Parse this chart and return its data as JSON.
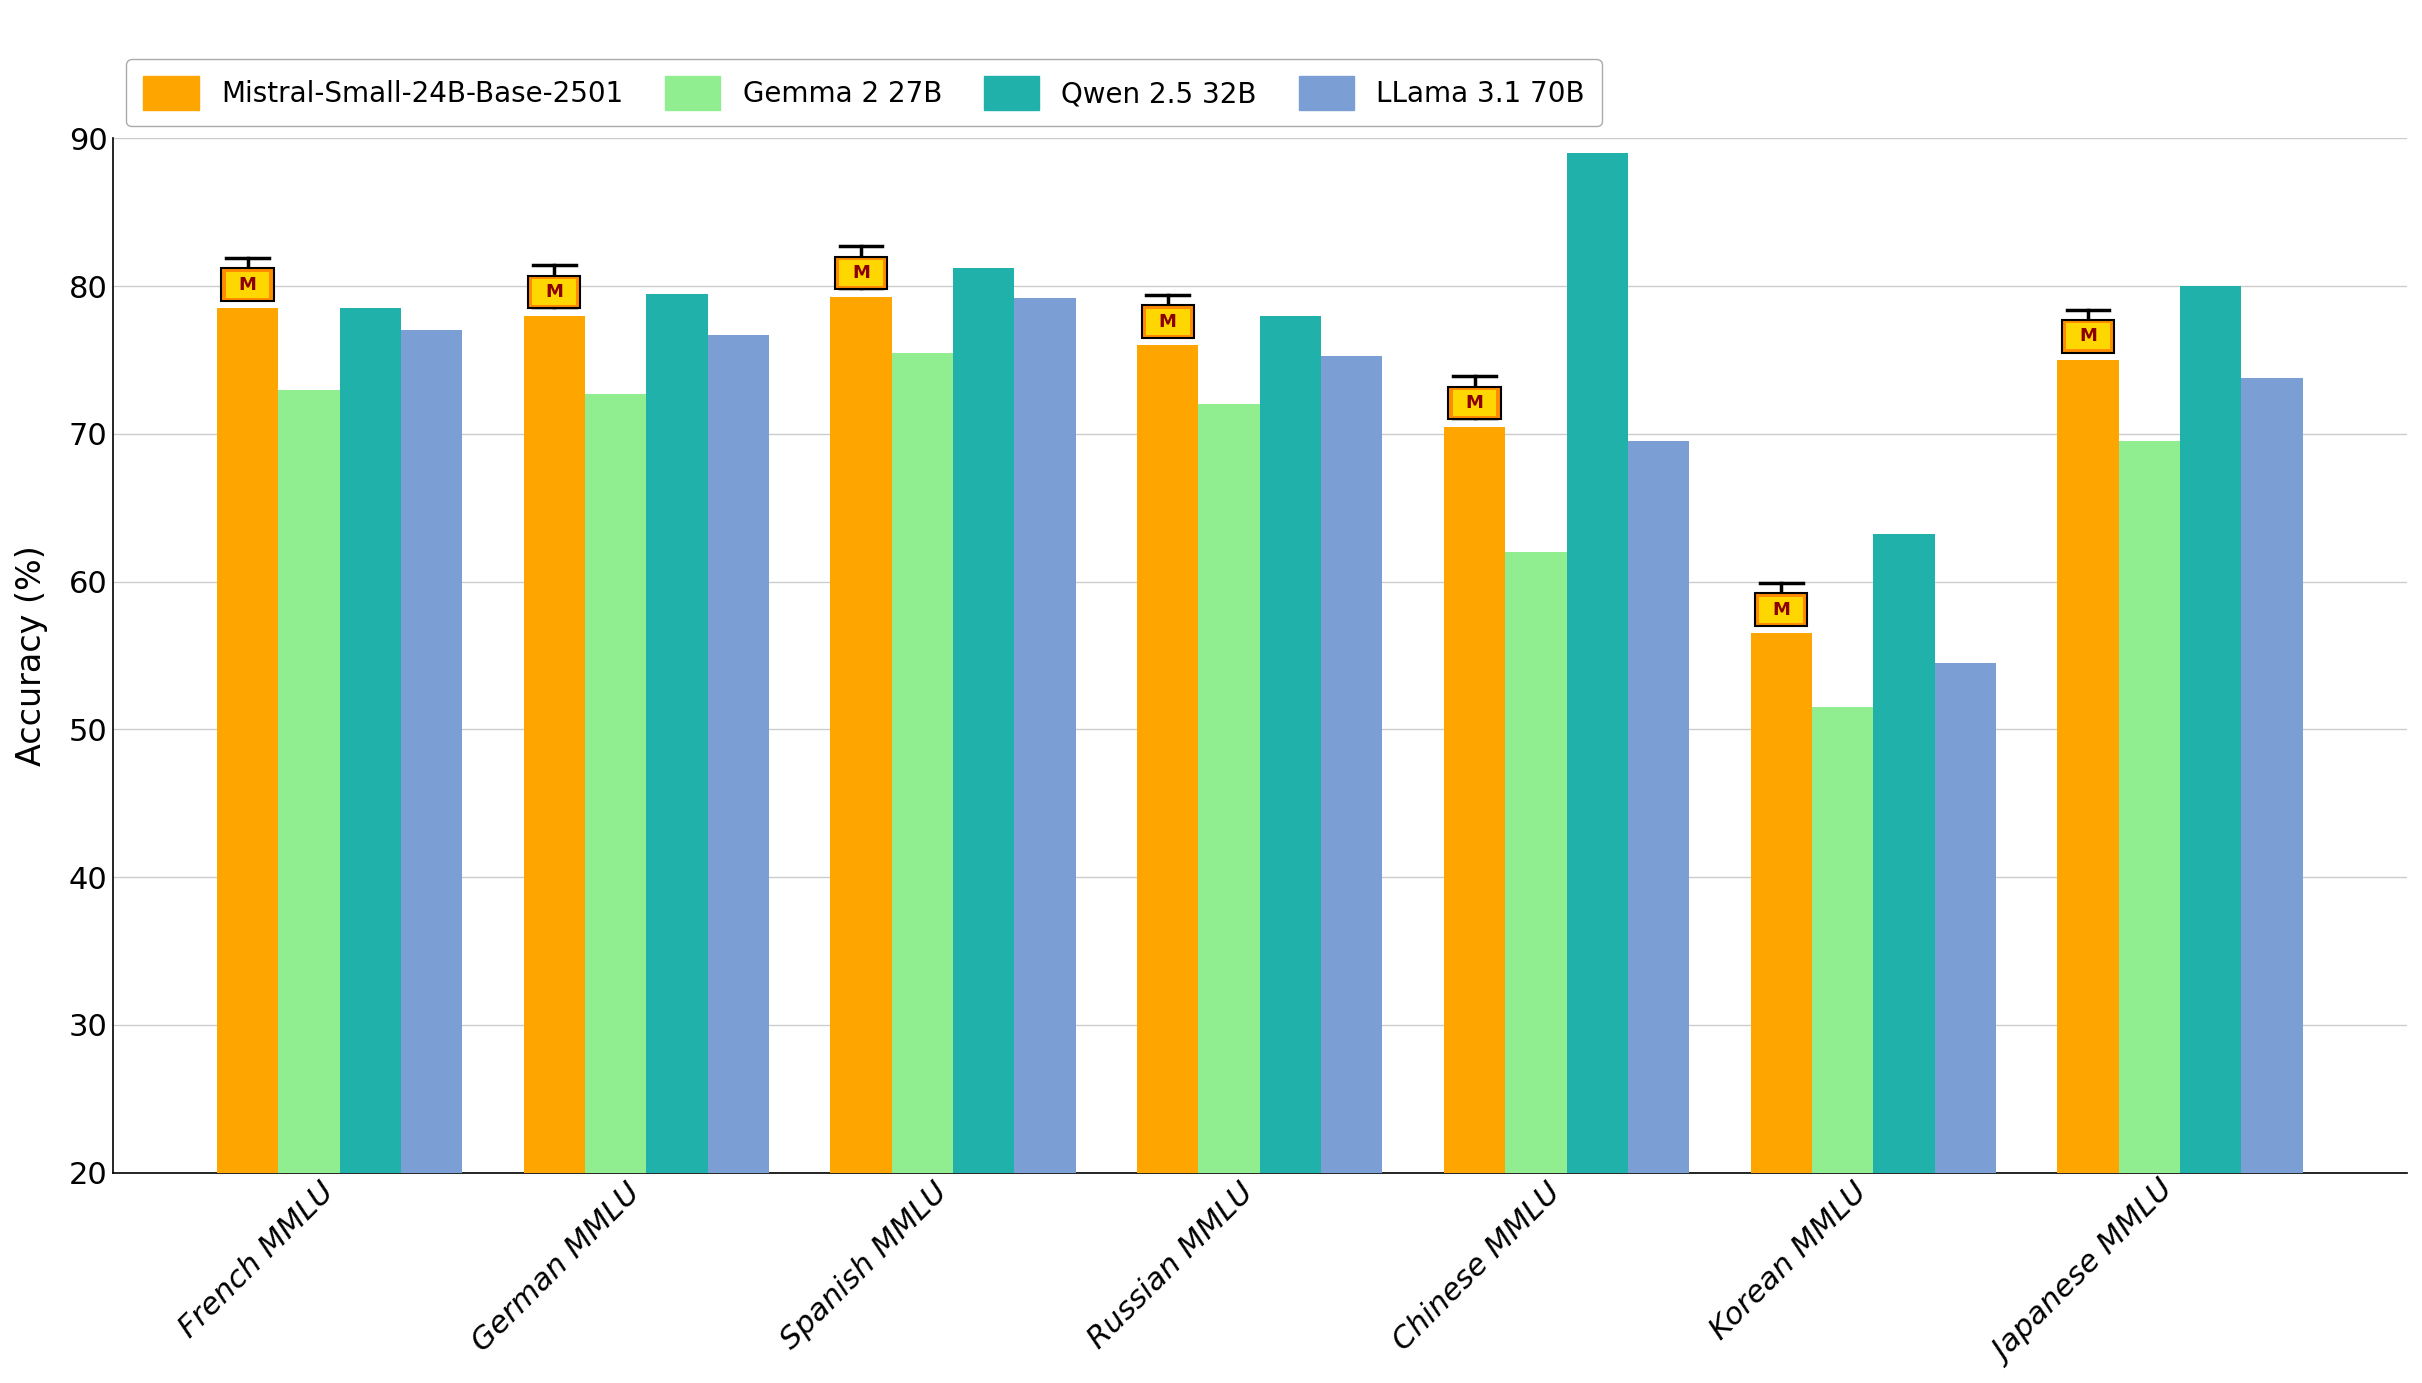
{
  "categories": [
    "French MMLU",
    "German MMLU",
    "Spanish MMLU",
    "Russian MMLU",
    "Chinese MMLU",
    "Korean MMLU",
    "Japanese MMLU"
  ],
  "series": [
    {
      "name": "Mistral-Small-24B-Base-2501",
      "color": "#FFA500",
      "values": [
        78.5,
        78.0,
        79.3,
        76.0,
        70.5,
        56.5,
        75.0
      ]
    },
    {
      "name": "Gemma 2 27B",
      "color": "#90EE90",
      "values": [
        73.0,
        72.7,
        75.5,
        72.0,
        62.0,
        51.5,
        69.5
      ]
    },
    {
      "name": "Qwen 2.5 32B",
      "color": "#20B2AA",
      "values": [
        78.5,
        79.5,
        81.2,
        78.0,
        89.0,
        63.2,
        80.0
      ]
    },
    {
      "name": "LLama 3.1 70B",
      "color": "#7B9FD4",
      "values": [
        77.0,
        76.7,
        79.2,
        75.3,
        69.5,
        54.5,
        73.8
      ]
    }
  ],
  "ylabel": "Accuracy (%)",
  "ylim": [
    20,
    90
  ],
  "yticks": [
    20,
    30,
    40,
    50,
    60,
    70,
    80,
    90
  ],
  "background_color": "#ffffff",
  "plot_bg_color": "#ffffff",
  "grid_color": "#cccccc",
  "bar_width": 0.2,
  "figsize": [
    24.22,
    13.83
  ],
  "dpi": 100,
  "tick_fontsize": 22,
  "ylabel_fontsize": 24,
  "legend_fontsize": 20
}
